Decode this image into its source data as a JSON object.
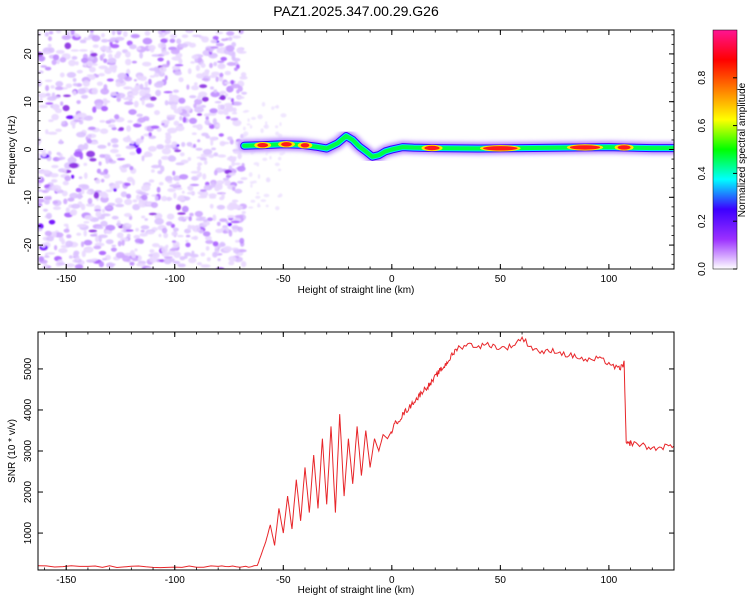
{
  "figure": {
    "title": "PAZ1.2025.347.00.29.G26"
  },
  "chart_data": [
    {
      "type": "heatmap",
      "xlabel": "Height of straight line (km)",
      "ylabel": "Frequency (Hz)",
      "xlim": [
        -163,
        130
      ],
      "ylim": [
        -25,
        25
      ],
      "xticks": [
        -150,
        -100,
        -50,
        0,
        50,
        100
      ],
      "yticks": [
        -20,
        -10,
        0,
        10,
        20
      ],
      "noise_region_x": [
        -163,
        -68
      ],
      "signal_region_x": [
        -68,
        130
      ],
      "signal_line": {
        "x": [
          -68,
          -60,
          -50,
          -42,
          -35,
          -30,
          -25,
          -21,
          -18,
          -15,
          -12,
          -9,
          -6,
          -3,
          0,
          5,
          10,
          20,
          40,
          60,
          80,
          100,
          120,
          130
        ],
        "freq": [
          0.8,
          0.9,
          1.1,
          1.0,
          0.6,
          0.2,
          1.3,
          2.8,
          2.0,
          0.6,
          -0.4,
          -1.5,
          -1.2,
          -0.4,
          0.0,
          0.5,
          0.4,
          0.3,
          0.2,
          0.3,
          0.4,
          0.5,
          0.3,
          0.3
        ]
      },
      "hot_segments": [
        {
          "x0": -62,
          "x1": -57
        },
        {
          "x0": -51,
          "x1": -46
        },
        {
          "x0": -42,
          "x1": -38
        },
        {
          "x0": 15,
          "x1": 22
        },
        {
          "x0": 42,
          "x1": 58
        },
        {
          "x0": 82,
          "x1": 96
        },
        {
          "x0": 104,
          "x1": 110
        }
      ],
      "colorbar": {
        "label": "Normalized spectral amplitude",
        "range": [
          0,
          1
        ],
        "ticks": [
          "0.0",
          "0.2",
          "0.4",
          "0.6",
          "0.8"
        ],
        "tick_values": [
          0.0,
          0.2,
          0.4,
          0.6,
          0.8
        ],
        "colors": [
          "#ffffff",
          "#9b30ff",
          "#3c00ff",
          "#00ffff",
          "#00ff00",
          "#ffff00",
          "#ff7f00",
          "#ff0000",
          "#ff1493"
        ]
      }
    },
    {
      "type": "line",
      "xlabel": "Height of straight line (km)",
      "ylabel": "SNR (10 * v/v)",
      "xlim": [
        -163,
        130
      ],
      "ylim": [
        100,
        5900
      ],
      "xticks": [
        -150,
        -100,
        -50,
        0,
        50,
        100
      ],
      "yticks": [
        1000,
        2000,
        3000,
        4000,
        5000
      ],
      "line_color": "#e8262a",
      "series": [
        {
          "name": "SNR",
          "x": [
            -163,
            -140,
            -120,
            -100,
            -80,
            -70,
            -62,
            -60,
            -58,
            -56,
            -54,
            -52,
            -50,
            -48,
            -46,
            -44,
            -42,
            -40,
            -38,
            -36,
            -34,
            -32,
            -30,
            -28,
            -26,
            -24,
            -22,
            -20,
            -18,
            -16,
            -14,
            -12,
            -10,
            -8,
            -6,
            -4,
            -2,
            0,
            2,
            4,
            6,
            8,
            10,
            12,
            14,
            16,
            18,
            20,
            22,
            24,
            26,
            28,
            30,
            35,
            40,
            45,
            50,
            55,
            60,
            65,
            70,
            75,
            80,
            85,
            90,
            95,
            100,
            104,
            106,
            107,
            108,
            110,
            115,
            120,
            125,
            130
          ],
          "y": [
            180,
            190,
            170,
            185,
            175,
            180,
            200,
            500,
            800,
            1200,
            700,
            1600,
            1000,
            1900,
            1100,
            2300,
            1300,
            2600,
            1500,
            2900,
            1600,
            3300,
            1700,
            3600,
            1500,
            3900,
            1900,
            3300,
            2200,
            3600,
            2400,
            3500,
            2600,
            3300,
            3000,
            3400,
            3300,
            3500,
            3700,
            3800,
            3950,
            4050,
            4200,
            4300,
            4450,
            4550,
            4650,
            4800,
            4950,
            5050,
            5200,
            5350,
            5500,
            5600,
            5550,
            5600,
            5500,
            5550,
            5750,
            5500,
            5400,
            5450,
            5350,
            5300,
            5200,
            5250,
            5150,
            5000,
            5050,
            5150,
            3150,
            3200,
            3150,
            3050,
            3100,
            3120
          ]
        }
      ]
    }
  ]
}
